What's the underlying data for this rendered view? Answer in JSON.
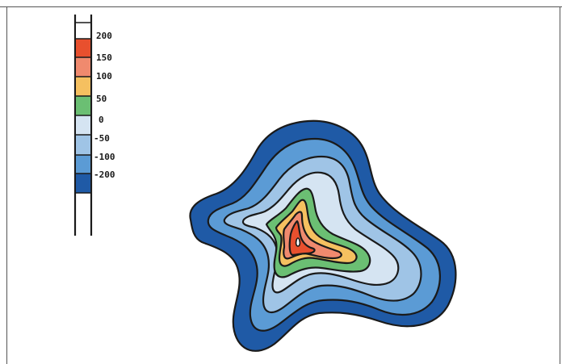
{
  "legend": {
    "labels": [
      "200",
      "150",
      "100",
      "50",
      "0",
      "-50",
      "-100",
      "-200"
    ],
    "colors": [
      "#ffffff",
      "#e8502e",
      "#f08a6e",
      "#f5c060",
      "#6bbf73",
      "#d5e4f2",
      "#9fc4e6",
      "#5b9bd5",
      "#1f5aa6"
    ]
  },
  "map": {
    "levels": [
      "-200",
      "-100",
      "-50",
      "-50b",
      "0",
      "50",
      "100",
      "150",
      "200"
    ],
    "fills": [
      "#1f5aa6",
      "#5b9bd5",
      "#9fc4e6",
      "#d5e4f2",
      "#6bbf73",
      "#f5c060",
      "#f08a6e",
      "#e8502e",
      "#ffffff"
    ]
  }
}
